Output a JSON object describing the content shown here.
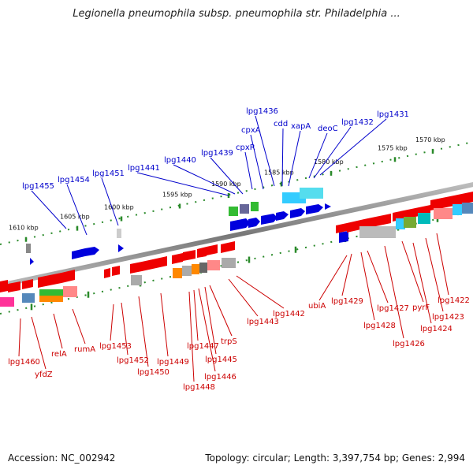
{
  "title": "Legionella pneumophila subsp. pneumophila str. Philadelphia ...",
  "footer": {
    "accession": "Accession: NC_002942",
    "topology": "Topology: circular; Length: 3,397,754 bp; Genes: 2,994"
  },
  "map": {
    "colors": {
      "upper_label": "#0000cc",
      "lower_label": "#cc0000",
      "backbone": "#888888",
      "scale": "#2a8a2a"
    },
    "scale_labels": [
      "1570 kbp",
      "1575 kbp",
      "1580 kbp",
      "1585 kbp",
      "1590 kbp",
      "1595 kbp",
      "1600 kbp",
      "1605 kbp",
      "1610 kbp"
    ],
    "upper_genes": [
      "lpg1431",
      "deoC",
      "lpg1432",
      "xapA",
      "cdd",
      "lpg1436",
      "cpxA",
      "cpxR",
      "lpg1439",
      "lpg1440",
      "lpg1441",
      "lpg1451",
      "lpg1454",
      "lpg1455"
    ],
    "lower_genes": [
      "lpg1422",
      "lpg1423",
      "lpg1424",
      "pyrF",
      "lpg1426",
      "lpg1427",
      "lpg1428",
      "lpg1429",
      "ubiA",
      "lpg1442",
      "lpg1443",
      "trpS",
      "lpg1445",
      "lpg1446",
      "lpg1447",
      "lpg1448",
      "lpg1449",
      "lpg1450",
      "lpg1452",
      "lpg1453",
      "rumA",
      "relA",
      "yfdZ",
      "lpg1460"
    ]
  }
}
